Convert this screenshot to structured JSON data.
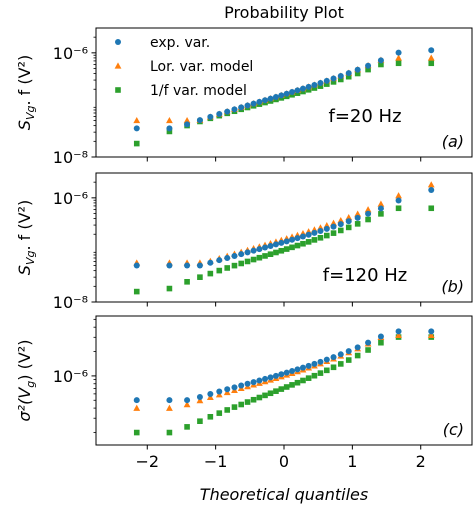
{
  "figure": {
    "title": "Probability Plot",
    "xlabel": "Theoretical quantiles",
    "legend": [
      {
        "label": "exp. var.",
        "color": "#1f77b4",
        "marker": "circle"
      },
      {
        "label": "Lor. var. model",
        "color": "#ff7f0e",
        "marker": "triangle"
      },
      {
        "label": "1/f var. model",
        "color": "#2ca02c",
        "marker": "square"
      }
    ],
    "x_tick_labels": [
      "−2",
      "−1",
      "0",
      "1",
      "2"
    ]
  },
  "chart_data": [
    {
      "type": "scatter",
      "panel_tag": "(a)",
      "annotation": "f=20 Hz",
      "ylabel_main": "S",
      "ylabel_sub": "Vg",
      "ylabel_tail": ". f (V²)",
      "y_scale": "log",
      "xlim": [
        -2.75,
        2.75
      ],
      "ylim": [
        1e-08,
        3e-06
      ],
      "y_tick_labels": [
        {
          "value": 1e-06,
          "label": "10⁻⁶"
        },
        {
          "value": 1e-08,
          "label": "10⁻⁸"
        }
      ],
      "series": [
        {
          "name": "exp. var.",
          "color": "#1f77b4",
          "marker": "circle",
          "params": {
            "a": -6.8,
            "b": 0.4,
            "c": 0.02,
            "t": 0.1,
            "lo": -7.45,
            "hi": -5.95
          }
        },
        {
          "name": "Lor. var. model",
          "color": "#ff7f0e",
          "marker": "triangle",
          "params": {
            "a": -6.8,
            "b": 0.4,
            "c": 0.02,
            "t": 0.11,
            "lo": -7.3,
            "hi": -6.1
          }
        },
        {
          "name": "1/f var. model",
          "color": "#2ca02c",
          "marker": "square",
          "params": {
            "a": -6.85,
            "b": 0.38,
            "c": 0.02,
            "t": 0.1,
            "lo": -7.8,
            "hi": -6.2
          }
        }
      ]
    },
    {
      "type": "scatter",
      "panel_tag": "(b)",
      "annotation": "f=120 Hz",
      "ylabel_main": "S",
      "ylabel_sub": "Vg",
      "ylabel_tail": ". f (V²)",
      "y_scale": "log",
      "xlim": [
        -2.75,
        2.75
      ],
      "ylim": [
        1e-08,
        3e-06
      ],
      "y_tick_labels": [
        {
          "value": 1e-06,
          "label": "10⁻⁶"
        },
        {
          "value": 1e-08,
          "label": "10⁻⁸"
        }
      ],
      "series": [
        {
          "name": "exp. var.",
          "color": "#1f77b4",
          "marker": "circle",
          "params": {
            "a": -6.85,
            "b": 0.38,
            "c": 0.03,
            "t": 0.1,
            "lo": -7.3,
            "hi": -5.85
          }
        },
        {
          "name": "Lor. var. model",
          "color": "#ff7f0e",
          "marker": "triangle",
          "params": {
            "a": -6.8,
            "b": 0.4,
            "c": 0.03,
            "t": 0.11,
            "lo": -7.25,
            "hi": -5.75
          }
        },
        {
          "name": "1/f var. model",
          "color": "#2ca02c",
          "marker": "square",
          "params": {
            "a": -7.0,
            "b": 0.42,
            "c": 0.02,
            "t": 0.12,
            "lo": -7.8,
            "hi": -6.2
          }
        }
      ]
    },
    {
      "type": "scatter",
      "panel_tag": "(c)",
      "annotation": "",
      "ylabel_main": "σ²(V",
      "ylabel_sub": "g",
      "ylabel_tail": ") (V²)",
      "y_scale": "log",
      "xlim": [
        -2.75,
        2.75
      ],
      "ylim": [
        1.4e-07,
        5.5e-06
      ],
      "y_tick_labels": [
        {
          "value": 1e-06,
          "label": "10⁻⁶"
        }
      ],
      "series": [
        {
          "name": "exp. var.",
          "color": "#1f77b4",
          "marker": "circle",
          "params": {
            "a": -5.97,
            "b": 0.25,
            "c": 0.03,
            "t": 0.09,
            "lo": -6.3,
            "hi": -5.45
          }
        },
        {
          "name": "Lor. var. model",
          "color": "#ff7f0e",
          "marker": "triangle",
          "params": {
            "a": -6.0,
            "b": 0.26,
            "c": 0.03,
            "t": 0.1,
            "lo": -6.4,
            "hi": -5.5
          }
        },
        {
          "name": "1/f var. model",
          "color": "#2ca02c",
          "marker": "square",
          "params": {
            "a": -6.15,
            "b": 0.33,
            "c": 0.02,
            "t": 0.11,
            "lo": -6.7,
            "hi": -5.52
          }
        }
      ]
    }
  ]
}
